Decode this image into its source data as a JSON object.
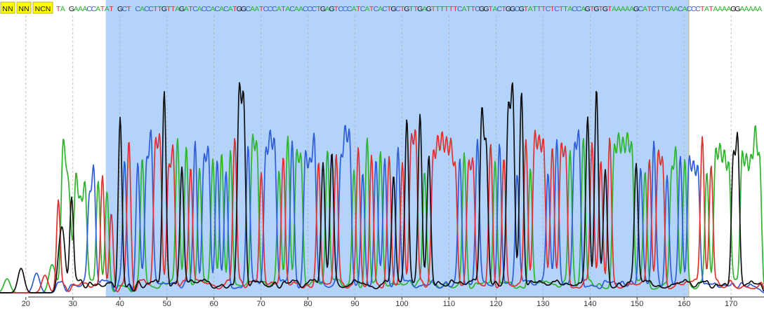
{
  "viewer": {
    "base_colors": {
      "A": "#2db52d",
      "C": "#2f5ed8",
      "G": "#111111",
      "T": "#e03131",
      "N": "#111111"
    },
    "selection_color": "#b3d3fb",
    "selection_border": "#c7c7a0",
    "flag_bg": "#ffff00"
  },
  "sequence": {
    "flagged_calls": [
      "NN",
      "NN",
      "NCN"
    ],
    "bases": "TA GAAACCATAT GCT CACCTTGTTAGATCACCACACATGGCAATCCCATACAACCCTGAGTCCCATCATCACTGCTGTTGAGTTTTTTCATTCGGTACTGGCGTATTTCTCTTACCAGTGTGTAAAAAGCATCTTCAACACCCTATAAAAGGAAAAA"
  },
  "chart_data": {
    "type": "chromatogram",
    "x_axis": {
      "ticks": [
        20,
        30,
        40,
        50,
        60,
        70,
        80,
        90,
        100,
        110,
        120,
        130,
        140,
        150,
        160,
        170
      ],
      "range": [
        14.5,
        177
      ]
    },
    "selection": {
      "from": 37,
      "to": 161
    },
    "grid": true,
    "traces": [
      "A",
      "C",
      "G",
      "T"
    ]
  }
}
